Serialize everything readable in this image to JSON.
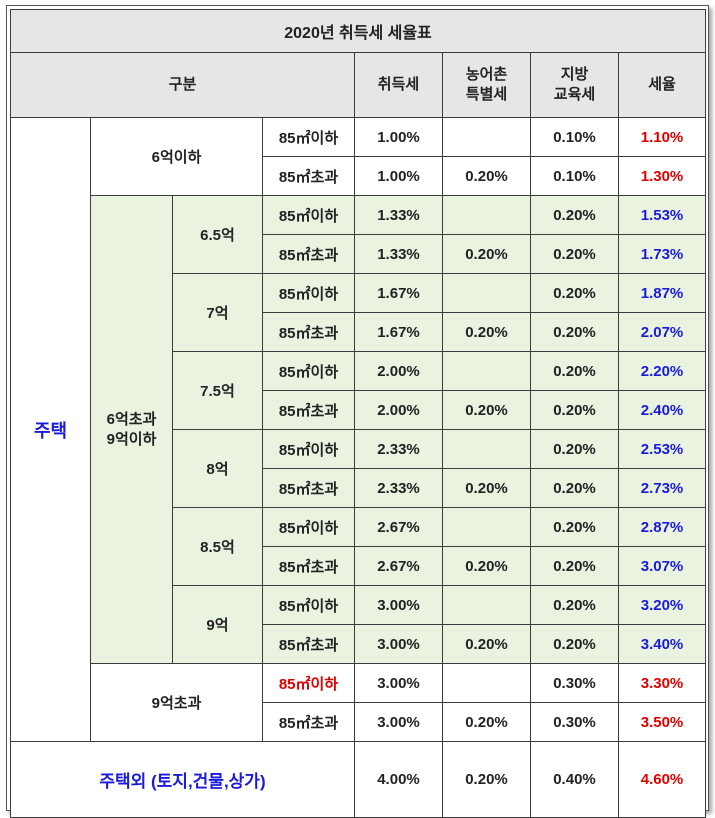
{
  "title": "2020년 취득세 세율표",
  "headers": {
    "category": "구분",
    "acquisition": "취득세",
    "rural": [
      "농어촌",
      "특별세"
    ],
    "local_edu": [
      "지방",
      "교육세"
    ],
    "rate": "세율"
  },
  "housing_label": "주택",
  "groups": [
    {
      "label": [
        "6억이하"
      ],
      "rows": [
        {
          "area": "85㎡이하",
          "acq": "1.00%",
          "rural": "",
          "edu": "0.10%",
          "rate": "1.10%"
        },
        {
          "area": "85㎡초과",
          "acq": "1.00%",
          "rural": "0.20%",
          "edu": "0.10%",
          "rate": "1.30%"
        }
      ]
    },
    {
      "label": [
        "6억초과",
        "9억이하"
      ],
      "subgroups": [
        {
          "price": "6.5억",
          "rows": [
            {
              "area": "85㎡이하",
              "acq": "1.33%",
              "rural": "",
              "edu": "0.20%",
              "rate": "1.53%"
            },
            {
              "area": "85㎡초과",
              "acq": "1.33%",
              "rural": "0.20%",
              "edu": "0.20%",
              "rate": "1.73%"
            }
          ]
        },
        {
          "price": "7억",
          "rows": [
            {
              "area": "85㎡이하",
              "acq": "1.67%",
              "rural": "",
              "edu": "0.20%",
              "rate": "1.87%"
            },
            {
              "area": "85㎡초과",
              "acq": "1.67%",
              "rural": "0.20%",
              "edu": "0.20%",
              "rate": "2.07%"
            }
          ]
        },
        {
          "price": "7.5억",
          "rows": [
            {
              "area": "85㎡이하",
              "acq": "2.00%",
              "rural": "",
              "edu": "0.20%",
              "rate": "2.20%"
            },
            {
              "area": "85㎡초과",
              "acq": "2.00%",
              "rural": "0.20%",
              "edu": "0.20%",
              "rate": "2.40%"
            }
          ]
        },
        {
          "price": "8억",
          "rows": [
            {
              "area": "85㎡이하",
              "acq": "2.33%",
              "rural": "",
              "edu": "0.20%",
              "rate": "2.53%"
            },
            {
              "area": "85㎡초과",
              "acq": "2.33%",
              "rural": "0.20%",
              "edu": "0.20%",
              "rate": "2.73%"
            }
          ]
        },
        {
          "price": "8.5억",
          "rows": [
            {
              "area": "85㎡이하",
              "acq": "2.67%",
              "rural": "",
              "edu": "0.20%",
              "rate": "2.87%"
            },
            {
              "area": "85㎡초과",
              "acq": "2.67%",
              "rural": "0.20%",
              "edu": "0.20%",
              "rate": "3.07%"
            }
          ]
        },
        {
          "price": "9억",
          "rows": [
            {
              "area": "85㎡이하",
              "acq": "3.00%",
              "rural": "",
              "edu": "0.20%",
              "rate": "3.20%"
            },
            {
              "area": "85㎡초과",
              "acq": "3.00%",
              "rural": "0.20%",
              "edu": "0.20%",
              "rate": "3.40%"
            }
          ]
        }
      ]
    },
    {
      "label": [
        "9억초과"
      ],
      "rows": [
        {
          "area": "85㎡이하",
          "acq": "3.00%",
          "rural": "",
          "edu": "0.30%",
          "rate": "3.30%"
        },
        {
          "area": "85㎡초과",
          "acq": "3.00%",
          "rural": "0.20%",
          "edu": "0.30%",
          "rate": "3.50%"
        }
      ]
    }
  ],
  "non_housing": {
    "label": "주택외 (토지,건물,상가)",
    "acq": "4.00%",
    "rural": "0.20%",
    "edu": "0.40%",
    "rate": "4.60%"
  },
  "colors": {
    "header_bg": "#e6e6e6",
    "mid_band_bg": "#e9f3e0",
    "rate_red": "#e00000",
    "rate_blue": "#1a1adc"
  }
}
